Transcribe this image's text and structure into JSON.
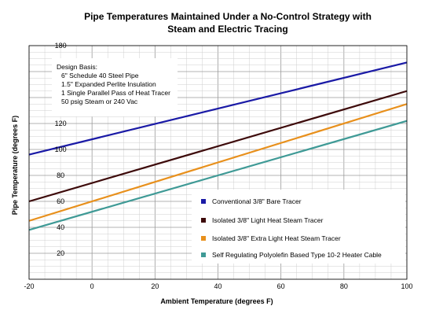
{
  "chart_data": {
    "type": "line",
    "title_line1": "Pipe Temperatures Maintained Under a No-Control Strategy with",
    "title_line2": "Steam and Electric  Tracing",
    "xlabel": "Ambient Temperature (degrees F)",
    "ylabel": "Pipe Temperature (degrees F)",
    "xlim": [
      -20,
      100
    ],
    "ylim": [
      0,
      180
    ],
    "x_ticks": [
      -20,
      0,
      20,
      40,
      60,
      80,
      100
    ],
    "y_ticks": [
      0,
      20,
      40,
      60,
      80,
      100,
      120,
      140,
      160,
      180
    ],
    "y_tick_labels": [
      "",
      "20",
      "40",
      "60",
      "80",
      "100",
      "120",
      "140",
      "160",
      "180"
    ],
    "grid": true,
    "legend_placement": "bottom-right",
    "design_basis": [
      "Design Basis:",
      "6\" Schedule 40 Steel Pipe",
      "1.5\" Expanded Perlite Insulation",
      "1 Single Parallel Pass of Heat Tracer",
      "50 psig Steam or 240 Vac"
    ],
    "series": [
      {
        "name": "Conventional 3/8\" Bare Tracer",
        "color": "#1a1aa6",
        "x": [
          -20,
          100
        ],
        "y": [
          96,
          167
        ]
      },
      {
        "name": "Isolated 3/8\" Light Heat Steam Tracer",
        "color": "#3d0a0a",
        "x": [
          -20,
          100
        ],
        "y": [
          60,
          145
        ]
      },
      {
        "name": "Isolated 3/8\" Extra Light Heat Steam Tracer",
        "color": "#e8901c",
        "x": [
          -20,
          100
        ],
        "y": [
          45,
          135
        ]
      },
      {
        "name": "Self Regulating Polyolefin Based Type 10-2 Heater Cable",
        "color": "#3f9a96",
        "x": [
          -20,
          100
        ],
        "y": [
          38,
          122
        ]
      }
    ]
  }
}
